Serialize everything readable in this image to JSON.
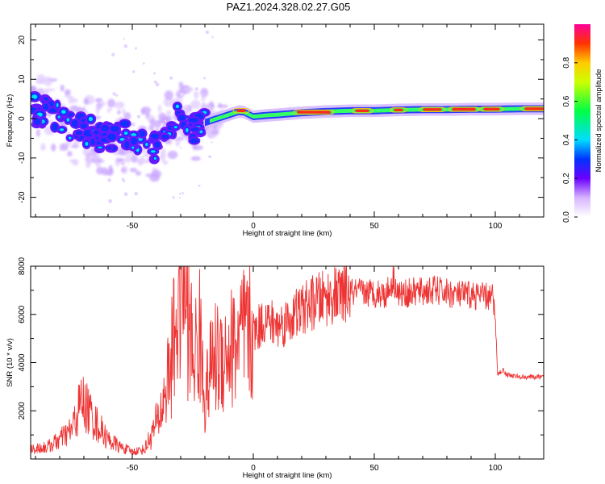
{
  "title": "PAZ1.2024.328.02.27.G05",
  "chart_data": [
    {
      "type": "heatmap",
      "xlabel": "Height of straight line (km)",
      "ylabel": "Frequency (Hz)",
      "xlim": [
        -92,
        120
      ],
      "ylim": [
        -25,
        24
      ],
      "xticks": [
        -50,
        0,
        50,
        100
      ],
      "yticks": [
        -20,
        -10,
        0,
        10,
        20
      ],
      "colorbar": {
        "label": "Normalized spectral amplitude",
        "range": [
          0,
          1
        ],
        "ticks": [
          "0.0",
          "0.2",
          "0.4",
          "0.6",
          "0.8"
        ]
      },
      "ridge": [
        {
          "x": -90,
          "y": 2
        },
        {
          "x": -85,
          "y": 1.5
        },
        {
          "x": -80,
          "y": 0
        },
        {
          "x": -75,
          "y": -2
        },
        {
          "x": -70,
          "y": -3
        },
        {
          "x": -65,
          "y": -4
        },
        {
          "x": -60,
          "y": -5
        },
        {
          "x": -55,
          "y": -4.5
        },
        {
          "x": -50,
          "y": -5
        },
        {
          "x": -45,
          "y": -6
        },
        {
          "x": -40,
          "y": -7
        },
        {
          "x": -35,
          "y": -2
        },
        {
          "x": -30,
          "y": 2
        },
        {
          "x": -25,
          "y": -3
        },
        {
          "x": -20,
          "y": -1
        },
        {
          "x": -15,
          "y": 0
        },
        {
          "x": -10,
          "y": 1
        },
        {
          "x": -5,
          "y": 2
        },
        {
          "x": 0,
          "y": 0.5
        },
        {
          "x": 5,
          "y": 0.8
        },
        {
          "x": 10,
          "y": 1
        },
        {
          "x": 20,
          "y": 1.5
        },
        {
          "x": 30,
          "y": 1.8
        },
        {
          "x": 40,
          "y": 2
        },
        {
          "x": 50,
          "y": 2
        },
        {
          "x": 60,
          "y": 2.2
        },
        {
          "x": 70,
          "y": 2.3
        },
        {
          "x": 80,
          "y": 2.3
        },
        {
          "x": 90,
          "y": 2.4
        },
        {
          "x": 100,
          "y": 2.4
        },
        {
          "x": 110,
          "y": 2.5
        },
        {
          "x": 120,
          "y": 2.5
        }
      ]
    },
    {
      "type": "line",
      "xlabel": "Height of straight line (km)",
      "ylabel": "SNR (10 * v/v)",
      "xlim": [
        -92,
        120
      ],
      "ylim": [
        0,
        8000
      ],
      "xticks": [
        -50,
        0,
        50,
        100
      ],
      "yticks": [
        2000,
        4000,
        6000,
        8000
      ],
      "line_color": "#ee3333",
      "series": [
        {
          "x": [
            -92,
            -85,
            -80,
            -75,
            -71,
            -68,
            -65,
            -60,
            -55,
            -50,
            -45,
            -42,
            -38,
            -34,
            -31,
            -29,
            -27,
            -25,
            -22,
            -20,
            -17,
            -14,
            -10,
            -5,
            0,
            5,
            10,
            15,
            20,
            25,
            30,
            35,
            40,
            45,
            50,
            55,
            58,
            60,
            65,
            70,
            75,
            80,
            85,
            90,
            95,
            99,
            100,
            101,
            103,
            105,
            110,
            115,
            120
          ],
          "values": [
            400,
            500,
            800,
            1200,
            2400,
            2000,
            1500,
            800,
            500,
            300,
            400,
            1000,
            2000,
            4000,
            6500,
            8000,
            6000,
            4200,
            5000,
            2500,
            4000,
            4300,
            4500,
            5000,
            5200,
            5800,
            5500,
            5800,
            6200,
            6500,
            6700,
            6800,
            6900,
            6900,
            6900,
            6850,
            7500,
            6800,
            6900,
            6950,
            7000,
            6900,
            6800,
            6800,
            6750,
            6700,
            5800,
            3500,
            3700,
            3500,
            3400,
            3400,
            3400
          ]
        }
      ]
    }
  ]
}
